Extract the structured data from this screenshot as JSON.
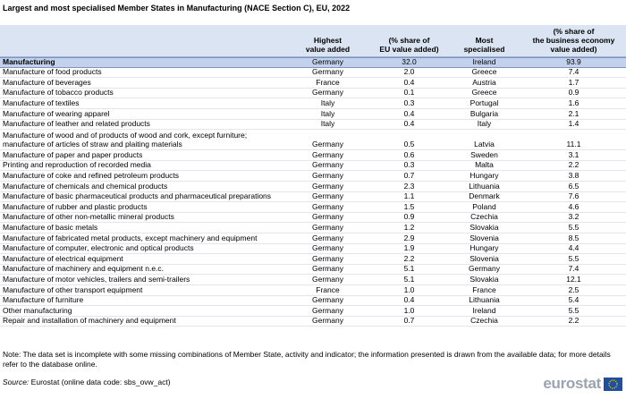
{
  "header": {
    "title": "Largest and most specialised Member States in Manufacturing (NACE Section C), EU, 2022"
  },
  "table": {
    "columns": [
      "",
      "Highest\nvalue added",
      "(% share of\nEU value added)",
      "Most\nspecialised",
      "(% share of\nthe business economy\nvalue added)"
    ],
    "rows": [
      [
        "Manufacturing",
        "Germany",
        "32.0",
        "Ireland",
        "93.9"
      ],
      [
        "Manufacture of food products",
        "Germany",
        "2.0",
        "Greece",
        "7.4"
      ],
      [
        "Manufacture of beverages",
        "France",
        "0.4",
        "Austria",
        "1.7"
      ],
      [
        "Manufacture of tobacco products",
        "Germany",
        "0.1",
        "Greece",
        "0.9"
      ],
      [
        "Manufacture of textiles",
        "Italy",
        "0.3",
        "Portugal",
        "1.6"
      ],
      [
        "Manufacture of wearing apparel",
        "Italy",
        "0.4",
        "Bulgaria",
        "2.1"
      ],
      [
        "Manufacture of leather and related products",
        "Italy",
        "0.4",
        "Italy",
        "1.4"
      ],
      [
        "Manufacture of wood and of products of wood and cork, except furniture;\nmanufacture of articles of straw and plaiting materials",
        "Germany",
        "0.5",
        "Latvia",
        "11.1"
      ],
      [
        "Manufacture of paper and paper products",
        "Germany",
        "0.6",
        "Sweden",
        "3.1"
      ],
      [
        "Printing and reproduction of recorded media",
        "Germany",
        "0.3",
        "Malta",
        "2.2"
      ],
      [
        "Manufacture of coke and refined petroleum products",
        "Germany",
        "0.7",
        "Hungary",
        "3.8"
      ],
      [
        "Manufacture of chemicals and chemical products",
        "Germany",
        "2.3",
        "Lithuania",
        "6.5"
      ],
      [
        "Manufacture of basic pharmaceutical products and pharmaceutical preparations",
        "Germany",
        "1.1",
        "Denmark",
        "7.6"
      ],
      [
        "Manufacture of rubber and plastic products",
        "Germany",
        "1.5",
        "Poland",
        "4.6"
      ],
      [
        "Manufacture of other non-metallic mineral products",
        "Germany",
        "0.9",
        "Czechia",
        "3.2"
      ],
      [
        "Manufacture of basic metals",
        "Germany",
        "1.2",
        "Slovakia",
        "5.5"
      ],
      [
        "Manufacture of fabricated metal products, except machinery and equipment",
        "Germany",
        "2.9",
        "Slovenia",
        "8.5"
      ],
      [
        "Manufacture of computer, electronic and optical products",
        "Germany",
        "1.9",
        "Hungary",
        "4.4"
      ],
      [
        "Manufacture of electrical equipment",
        "Germany",
        "2.2",
        "Slovenia",
        "5.5"
      ],
      [
        "Manufacture of machinery and equipment n.e.c.",
        "Germany",
        "5.1",
        "Germany",
        "7.4"
      ],
      [
        "Manufacture of motor vehicles, trailers and semi-trailers",
        "Germany",
        "5.1",
        "Slovakia",
        "12.1"
      ],
      [
        "Manufacture of other transport equipment",
        "France",
        "1.0",
        "France",
        "2.5"
      ],
      [
        "Manufacture of furniture",
        "Germany",
        "0.4",
        "Lithuania",
        "5.4"
      ],
      [
        "Other manufacturing",
        "Germany",
        "1.0",
        "Ireland",
        "5.5"
      ],
      [
        "Repair and installation of machinery and equipment",
        "Germany",
        "0.7",
        "Czechia",
        "2.2"
      ]
    ]
  },
  "footer": {
    "note": "Note: The data set is incomplete with some missing combinations of Member State, activity and indicator; the information presented is drawn from the available data; for more details refer to the database online.",
    "source_label": "Source:",
    "source": "Eurostat (online data code: sbs_ovw_act)",
    "logo": "eurostat"
  }
}
